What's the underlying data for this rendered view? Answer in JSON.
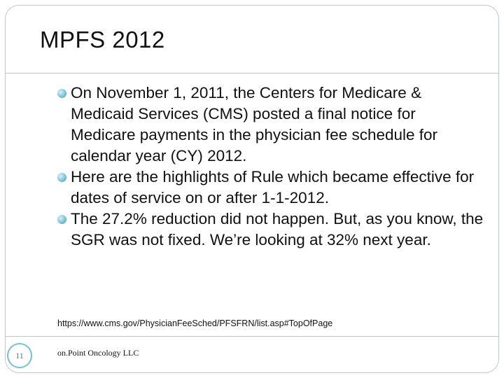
{
  "slide": {
    "title": "MPFS 2012",
    "bullets": [
      "On November 1, 2011, the Centers for Medicare & Medicaid Services (CMS) posted a final notice for Medicare payments in the physician fee schedule for calendar year (CY) 2012.",
      "Here are the highlights of Rule which became effective for dates of service on or after 1-1-2012.",
      "The 27.2% reduction did not happen.  But, as you know, the SGR was not fixed. We’re looking at 32% next year."
    ],
    "source_url": "https://www.cms.gov/PhysicianFeeSched/PFSFRN/list.asp#TopOfPage",
    "footer": {
      "page_number": "11",
      "company": "on.Point Oncology LLC"
    }
  },
  "colors": {
    "accent": "#78bfd6",
    "rule": "#bcc7cd"
  }
}
